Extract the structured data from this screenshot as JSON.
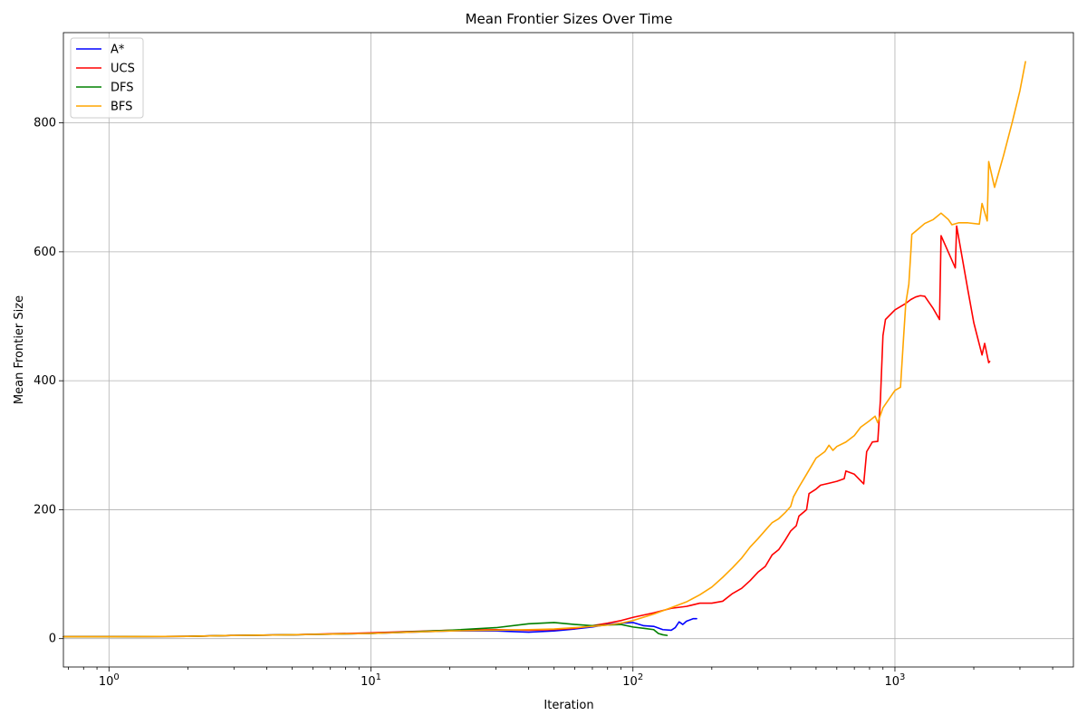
{
  "chart_data": {
    "type": "line",
    "title": "Mean Frontier Sizes Over Time",
    "xlabel": "Iteration",
    "ylabel": "Mean Frontier Size",
    "x_scale": "log",
    "xlim": [
      0.67,
      4800
    ],
    "ylim": [
      -44,
      940
    ],
    "x_major_ticks": [
      {
        "value": 1,
        "base": "10",
        "exp": "0"
      },
      {
        "value": 10,
        "base": "10",
        "exp": "1"
      },
      {
        "value": 100,
        "base": "10",
        "exp": "2"
      },
      {
        "value": 1000,
        "base": "10",
        "exp": "3"
      }
    ],
    "y_ticks": [
      {
        "value": 0,
        "label": "0"
      },
      {
        "value": 200,
        "label": "200"
      },
      {
        "value": 400,
        "label": "400"
      },
      {
        "value": 600,
        "label": "600"
      },
      {
        "value": 800,
        "label": "800"
      }
    ],
    "grid": true,
    "legend_position": "top-left",
    "series": [
      {
        "name": "A*",
        "color": "#0000ff",
        "points": [
          [
            0.67,
            3
          ],
          [
            1,
            3
          ],
          [
            2,
            3.5
          ],
          [
            3,
            5
          ],
          [
            5,
            6
          ],
          [
            10,
            8
          ],
          [
            20,
            12
          ],
          [
            30,
            12
          ],
          [
            40,
            10
          ],
          [
            50,
            12
          ],
          [
            60,
            15
          ],
          [
            70,
            18
          ],
          [
            80,
            22
          ],
          [
            90,
            24
          ],
          [
            100,
            25
          ],
          [
            110,
            20
          ],
          [
            120,
            19
          ],
          [
            130,
            14
          ],
          [
            140,
            13
          ],
          [
            145,
            17
          ],
          [
            150,
            26
          ],
          [
            155,
            22
          ],
          [
            160,
            27
          ],
          [
            170,
            31
          ],
          [
            175,
            31
          ]
        ]
      },
      {
        "name": "UCS",
        "color": "#ff0000",
        "points": [
          [
            0.67,
            3
          ],
          [
            1,
            3
          ],
          [
            2,
            3.5
          ],
          [
            3,
            5
          ],
          [
            5,
            6
          ],
          [
            10,
            9
          ],
          [
            20,
            13
          ],
          [
            30,
            14
          ],
          [
            40,
            13
          ],
          [
            50,
            14
          ],
          [
            60,
            16
          ],
          [
            70,
            20
          ],
          [
            80,
            24
          ],
          [
            90,
            28
          ],
          [
            100,
            33
          ],
          [
            120,
            40
          ],
          [
            140,
            47
          ],
          [
            160,
            50
          ],
          [
            180,
            55
          ],
          [
            200,
            55
          ],
          [
            220,
            58
          ],
          [
            240,
            70
          ],
          [
            260,
            78
          ],
          [
            280,
            90
          ],
          [
            300,
            103
          ],
          [
            320,
            112
          ],
          [
            340,
            130
          ],
          [
            360,
            138
          ],
          [
            380,
            152
          ],
          [
            400,
            167
          ],
          [
            420,
            175
          ],
          [
            430,
            190
          ],
          [
            460,
            200
          ],
          [
            470,
            225
          ],
          [
            500,
            232
          ],
          [
            520,
            238
          ],
          [
            560,
            241
          ],
          [
            600,
            244
          ],
          [
            640,
            248
          ],
          [
            650,
            260
          ],
          [
            700,
            255
          ],
          [
            760,
            240
          ],
          [
            780,
            290
          ],
          [
            820,
            305
          ],
          [
            860,
            306
          ],
          [
            880,
            370
          ],
          [
            900,
            470
          ],
          [
            920,
            495
          ],
          [
            1000,
            510
          ],
          [
            1100,
            520
          ],
          [
            1150,
            526
          ],
          [
            1200,
            530
          ],
          [
            1250,
            532
          ],
          [
            1300,
            531
          ],
          [
            1400,
            512
          ],
          [
            1480,
            495
          ],
          [
            1500,
            625
          ],
          [
            1700,
            575
          ],
          [
            1720,
            640
          ],
          [
            1900,
            540
          ],
          [
            2000,
            490
          ],
          [
            2150,
            440
          ],
          [
            2200,
            458
          ],
          [
            2280,
            428
          ],
          [
            2300,
            430
          ]
        ]
      },
      {
        "name": "DFS",
        "color": "#008000",
        "points": [
          [
            0.67,
            3
          ],
          [
            1,
            3
          ],
          [
            2,
            3.5
          ],
          [
            3,
            5
          ],
          [
            5,
            6
          ],
          [
            10,
            8
          ],
          [
            20,
            13
          ],
          [
            30,
            17
          ],
          [
            40,
            23
          ],
          [
            50,
            25
          ],
          [
            60,
            22
          ],
          [
            70,
            20
          ],
          [
            80,
            21
          ],
          [
            90,
            22
          ],
          [
            100,
            18
          ],
          [
            110,
            16
          ],
          [
            120,
            14
          ],
          [
            125,
            8
          ],
          [
            130,
            6
          ],
          [
            135,
            5
          ]
        ]
      },
      {
        "name": "BFS",
        "color": "#ffa500",
        "points": [
          [
            0.67,
            3
          ],
          [
            1,
            3
          ],
          [
            2,
            3.5
          ],
          [
            3,
            5
          ],
          [
            5,
            6
          ],
          [
            10,
            8
          ],
          [
            20,
            12
          ],
          [
            30,
            13
          ],
          [
            40,
            14
          ],
          [
            50,
            15
          ],
          [
            60,
            17
          ],
          [
            70,
            19
          ],
          [
            80,
            21
          ],
          [
            90,
            24
          ],
          [
            100,
            28
          ],
          [
            120,
            38
          ],
          [
            140,
            48
          ],
          [
            160,
            57
          ],
          [
            180,
            68
          ],
          [
            200,
            80
          ],
          [
            220,
            95
          ],
          [
            240,
            110
          ],
          [
            260,
            125
          ],
          [
            280,
            142
          ],
          [
            300,
            155
          ],
          [
            320,
            168
          ],
          [
            340,
            180
          ],
          [
            360,
            186
          ],
          [
            380,
            195
          ],
          [
            400,
            205
          ],
          [
            410,
            220
          ],
          [
            430,
            235
          ],
          [
            460,
            255
          ],
          [
            500,
            280
          ],
          [
            540,
            290
          ],
          [
            560,
            300
          ],
          [
            580,
            292
          ],
          [
            600,
            298
          ],
          [
            650,
            305
          ],
          [
            700,
            315
          ],
          [
            740,
            328
          ],
          [
            800,
            338
          ],
          [
            840,
            345
          ],
          [
            860,
            335
          ],
          [
            900,
            358
          ],
          [
            1000,
            385
          ],
          [
            1050,
            390
          ],
          [
            1080,
            470
          ],
          [
            1100,
            520
          ],
          [
            1130,
            550
          ],
          [
            1150,
            600
          ],
          [
            1160,
            627
          ],
          [
            1200,
            632
          ],
          [
            1300,
            644
          ],
          [
            1400,
            650
          ],
          [
            1500,
            660
          ],
          [
            1600,
            650
          ],
          [
            1650,
            642
          ],
          [
            1750,
            645
          ],
          [
            1900,
            645
          ],
          [
            2100,
            643
          ],
          [
            2150,
            675
          ],
          [
            2250,
            648
          ],
          [
            2280,
            740
          ],
          [
            2400,
            700
          ],
          [
            2600,
            750
          ],
          [
            2800,
            800
          ],
          [
            3000,
            850
          ],
          [
            3150,
            895
          ]
        ]
      }
    ]
  }
}
